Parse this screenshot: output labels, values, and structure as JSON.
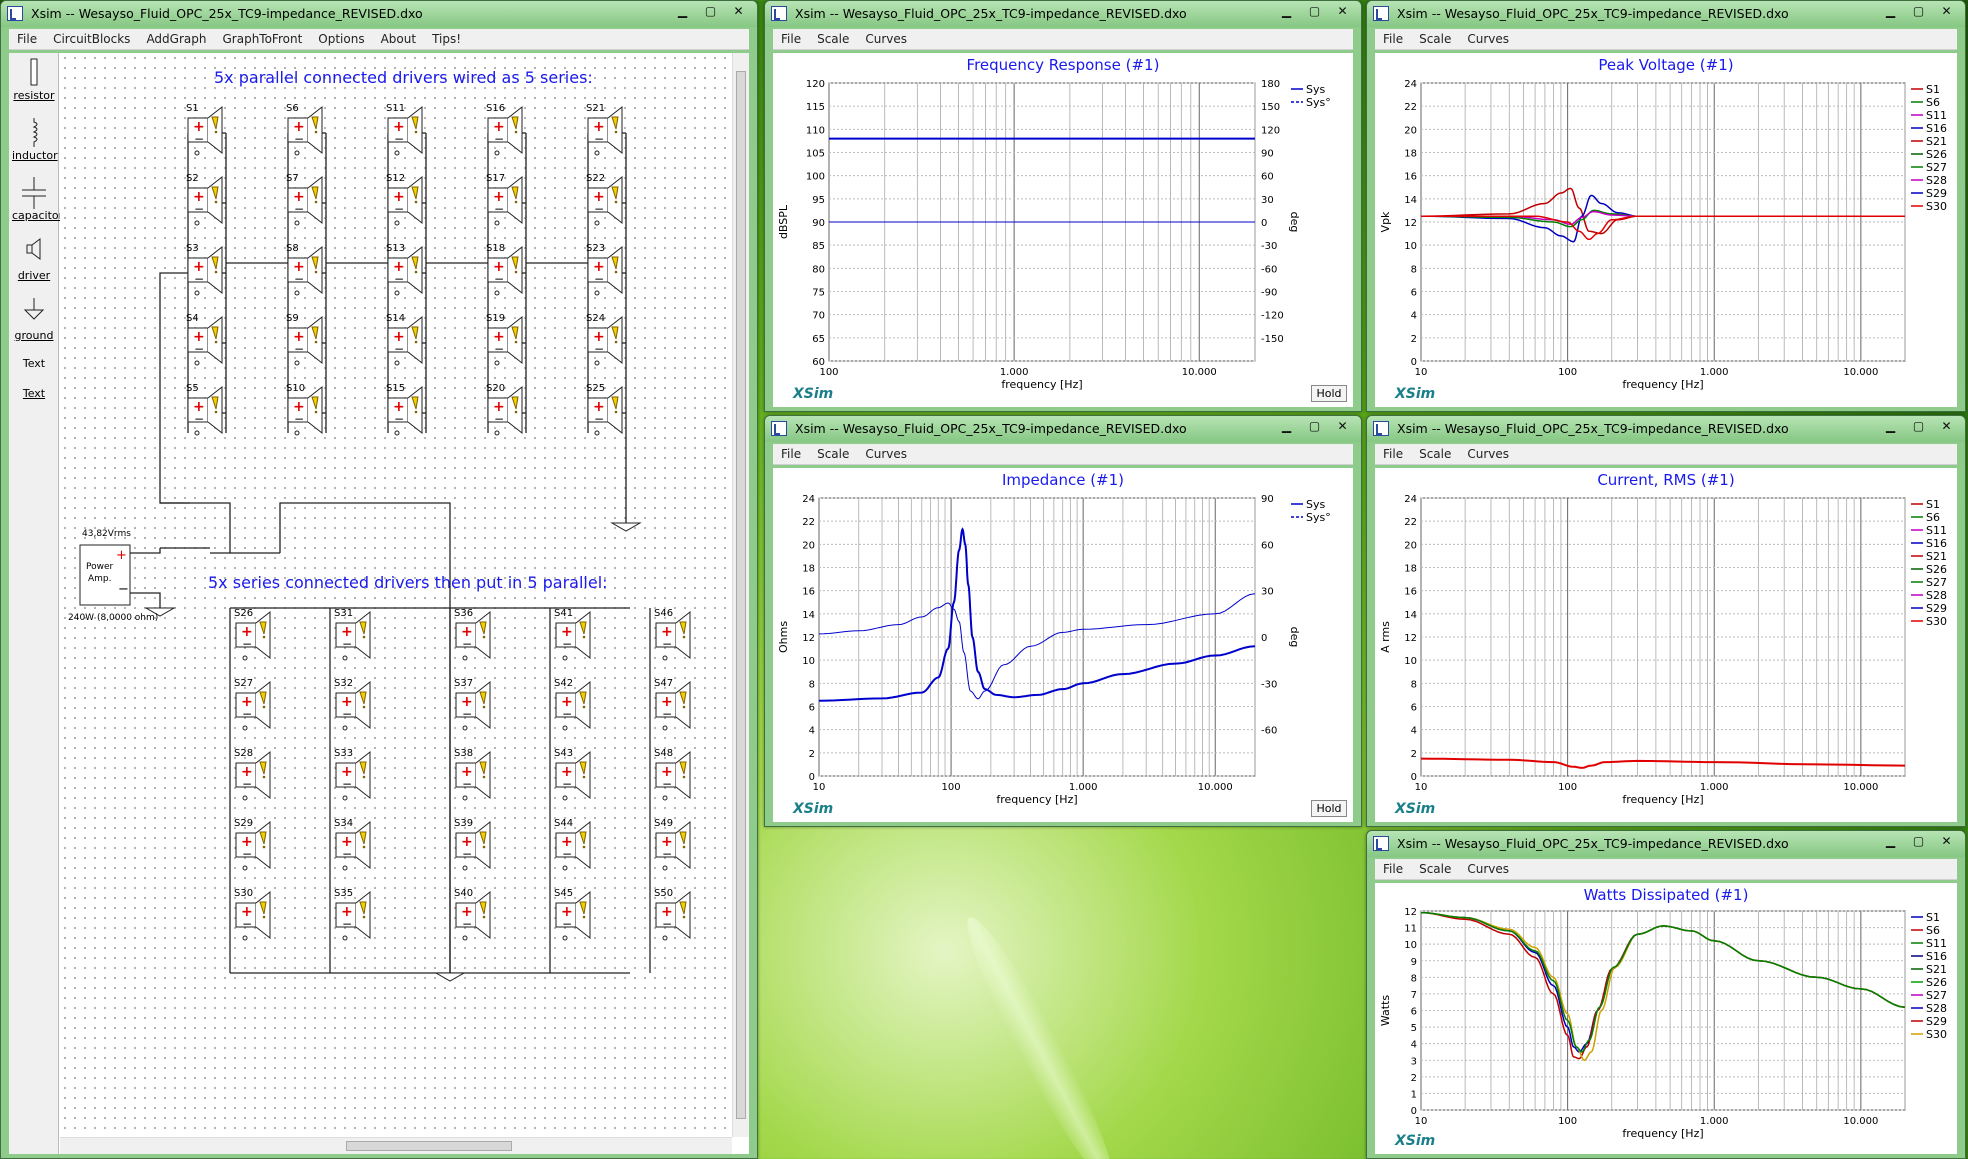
{
  "app": {
    "title": "Xsim -- Wesayso_Fluid_OPC_25x_TC9-impedance_REVISED.dxo",
    "chart_title": "Xsim -- Wesayso_Fluid_OPC_25x_TC9-impedance_REVISED.dxo",
    "brand": "XSim",
    "hold": "Hold"
  },
  "main_menu": [
    "File",
    "CircuitBlocks",
    "AddGraph",
    "GraphToFront",
    "Options",
    "About",
    "Tips!"
  ],
  "chart_menu": [
    "File",
    "Scale",
    "Curves"
  ],
  "palette": [
    {
      "label": "resistor",
      "icon": "resistor-icon"
    },
    {
      "label": "inductor",
      "icon": "inductor-icon"
    },
    {
      "label": "capacitor",
      "icon": "capacitor-icon"
    },
    {
      "label": "driver",
      "icon": "driver-icon"
    },
    {
      "label": "ground",
      "icon": "ground-icon"
    },
    {
      "label": "Text",
      "icon": "text-item"
    },
    {
      "label": "Text",
      "icon": "text-item"
    }
  ],
  "schematic": {
    "top_caption": "5x parallel connected drivers wired as 5 series:",
    "bottom_caption": "5x series connected drivers then put in 5 parallel:",
    "amp_voltage": "43,82Vrms",
    "amp_label_1": "Power",
    "amp_label_2": "Amp.",
    "amp_plus": "+",
    "amp_minus": "−",
    "amp_power": "240W (8,0000 ohm)",
    "top_drivers": [
      "S1",
      "S2",
      "S3",
      "S4",
      "S5",
      "S6",
      "S7",
      "S8",
      "S9",
      "S10",
      "S11",
      "S12",
      "S13",
      "S14",
      "S15",
      "S16",
      "S17",
      "S18",
      "S19",
      "S20",
      "S21",
      "S22",
      "S23",
      "S24",
      "S25"
    ],
    "bottom_drivers": [
      "S26",
      "S27",
      "S28",
      "S29",
      "S30",
      "S31",
      "S32",
      "S33",
      "S34",
      "S35",
      "S36",
      "S37",
      "S38",
      "S39",
      "S40",
      "S41",
      "S42",
      "S43",
      "S44",
      "S45",
      "S46",
      "S47",
      "S48",
      "S49",
      "S50"
    ]
  },
  "chart_data": [
    {
      "id": "freq",
      "type": "line",
      "title": "Frequency Response (#1)",
      "xlabel": "frequency [Hz]",
      "ylabel": "dBSPL",
      "ylabel2": "deg",
      "xscale": "log",
      "xlim": [
        100,
        20000
      ],
      "ylim": [
        60,
        120
      ],
      "y2lim": [
        -180,
        180
      ],
      "xticks": [
        {
          "v": 100,
          "l": "100"
        },
        {
          "v": 1000,
          "l": "1.000"
        },
        {
          "v": 10000,
          "l": "10.000"
        }
      ],
      "yticks": [
        60,
        65,
        70,
        75,
        80,
        85,
        90,
        95,
        100,
        105,
        110,
        115,
        120
      ],
      "y2ticks": [
        -150,
        -120,
        -90,
        -60,
        -30,
        0,
        30,
        60,
        90,
        120,
        150,
        180
      ],
      "legend": [
        {
          "name": "Sys",
          "color": "#0000cc"
        },
        {
          "name": "Sys°",
          "color": "#0000cc",
          "dashed": true
        }
      ],
      "series": [
        {
          "name": "Sys",
          "color": "#0000cc",
          "width": 2,
          "x": [
            100,
            20000
          ],
          "y": [
            108,
            108
          ]
        },
        {
          "name": "Sys°",
          "color": "#0000cc",
          "width": 1,
          "axis": 2,
          "x": [
            100,
            20000
          ],
          "y": [
            0,
            0
          ]
        }
      ]
    },
    {
      "id": "peak",
      "type": "line",
      "title": "Peak Voltage (#1)",
      "xlabel": "frequency [Hz]",
      "ylabel": "Vpk",
      "xscale": "log",
      "xlim": [
        10,
        20000
      ],
      "ylim": [
        0,
        24
      ],
      "xticks": [
        {
          "v": 10,
          "l": "10"
        },
        {
          "v": 100,
          "l": "100"
        },
        {
          "v": 1000,
          "l": "1.000"
        },
        {
          "v": 10000,
          "l": "10.000"
        }
      ],
      "yticks": [
        0,
        2,
        4,
        6,
        8,
        10,
        12,
        14,
        16,
        18,
        20,
        22,
        24
      ],
      "legend": [
        {
          "name": "S1",
          "color": "#c00000"
        },
        {
          "name": "S6",
          "color": "#008000"
        },
        {
          "name": "S11",
          "color": "#c000c0"
        },
        {
          "name": "S16",
          "color": "#0000c0"
        },
        {
          "name": "S21",
          "color": "#c00000"
        },
        {
          "name": "S26",
          "color": "#006000"
        },
        {
          "name": "S27",
          "color": "#008000"
        },
        {
          "name": "S28",
          "color": "#c000c0"
        },
        {
          "name": "S29",
          "color": "#0000c0"
        },
        {
          "name": "S30",
          "color": "#e00000"
        }
      ],
      "series": [
        {
          "name": "S1",
          "color": "#c00000",
          "width": 1.5,
          "x": [
            10,
            40,
            70,
            90,
            105,
            120,
            140,
            170,
            220,
            300,
            20000
          ],
          "y": [
            12.5,
            12.7,
            13.6,
            14.5,
            14.9,
            13.2,
            11.2,
            11.0,
            12.2,
            12.5,
            12.5
          ]
        },
        {
          "name": "S16",
          "color": "#0000c0",
          "width": 1.5,
          "x": [
            10,
            40,
            70,
            90,
            110,
            125,
            145,
            170,
            220,
            300,
            20000
          ],
          "y": [
            12.5,
            12.3,
            11.5,
            10.8,
            10.3,
            12.5,
            14.3,
            13.6,
            12.8,
            12.5,
            12.5
          ]
        },
        {
          "name": "S6",
          "color": "#008000",
          "width": 1.5,
          "x": [
            10,
            40,
            80,
            105,
            125,
            150,
            200,
            300,
            20000
          ],
          "y": [
            12.5,
            12.4,
            12.0,
            11.6,
            12.2,
            13.0,
            12.7,
            12.5,
            12.5
          ]
        },
        {
          "name": "S11",
          "color": "#c000c0",
          "width": 1.5,
          "x": [
            10,
            40,
            80,
            105,
            125,
            150,
            200,
            300,
            20000
          ],
          "y": [
            12.5,
            12.5,
            12.2,
            11.8,
            12.4,
            12.9,
            12.6,
            12.5,
            12.5
          ]
        },
        {
          "name": "S30",
          "color": "#e00000",
          "width": 1.5,
          "x": [
            10,
            60,
            100,
            120,
            140,
            160,
            200,
            300,
            20000
          ],
          "y": [
            12.5,
            12.5,
            12.0,
            11.2,
            10.5,
            11.0,
            12.2,
            12.5,
            12.5
          ]
        }
      ]
    },
    {
      "id": "imp",
      "type": "line",
      "title": "Impedance (#1)",
      "xlabel": "frequency [Hz]",
      "ylabel": "Ohms",
      "ylabel2": "deg",
      "xscale": "log",
      "xlim": [
        10,
        20000
      ],
      "ylim": [
        0,
        24
      ],
      "y2lim": [
        -90,
        90
      ],
      "xticks": [
        {
          "v": 10,
          "l": "10"
        },
        {
          "v": 100,
          "l": "100"
        },
        {
          "v": 1000,
          "l": "1.000"
        },
        {
          "v": 10000,
          "l": "10.000"
        }
      ],
      "yticks": [
        0,
        2,
        4,
        6,
        8,
        10,
        12,
        14,
        16,
        18,
        20,
        22,
        24
      ],
      "y2ticks": [
        -60,
        -30,
        0,
        30,
        60,
        90
      ],
      "legend": [
        {
          "name": "Sys",
          "color": "#0000cc"
        },
        {
          "name": "Sys°",
          "color": "#0000cc",
          "dashed": true
        }
      ],
      "series": [
        {
          "name": "Sys",
          "color": "#0000cc",
          "width": 2,
          "x": [
            10,
            30,
            60,
            80,
            95,
            105,
            115,
            122,
            128,
            135,
            145,
            160,
            180,
            220,
            300,
            450,
            700,
            1000,
            2000,
            5000,
            10000,
            20000
          ],
          "y": [
            6.5,
            6.7,
            7.2,
            8.5,
            11,
            15,
            19.5,
            21.3,
            20,
            16.5,
            12,
            9,
            7.5,
            7,
            6.8,
            7,
            7.5,
            8,
            8.8,
            9.7,
            10.4,
            11.2
          ]
        },
        {
          "name": "Sys°",
          "color": "#0000cc",
          "width": 1,
          "axis": 2,
          "x": [
            10,
            20,
            40,
            60,
            80,
            95,
            105,
            115,
            125,
            140,
            160,
            180,
            250,
            400,
            700,
            1000,
            3000,
            10000,
            20000
          ],
          "y": [
            2,
            4,
            8,
            13,
            19,
            22,
            18,
            10,
            -10,
            -35,
            -40,
            -35,
            -18,
            -6,
            3,
            5,
            8,
            15,
            28
          ]
        }
      ]
    },
    {
      "id": "cur",
      "type": "line",
      "title": "Current, RMS (#1)",
      "xlabel": "frequency [Hz]",
      "ylabel": "A rms",
      "xscale": "log",
      "xlim": [
        10,
        20000
      ],
      "ylim": [
        0,
        24
      ],
      "xticks": [
        {
          "v": 10,
          "l": "10"
        },
        {
          "v": 100,
          "l": "100"
        },
        {
          "v": 1000,
          "l": "1.000"
        },
        {
          "v": 10000,
          "l": "10.000"
        }
      ],
      "yticks": [
        0,
        2,
        4,
        6,
        8,
        10,
        12,
        14,
        16,
        18,
        20,
        22,
        24
      ],
      "legend": [
        {
          "name": "S1",
          "color": "#c00000"
        },
        {
          "name": "S6",
          "color": "#008000"
        },
        {
          "name": "S11",
          "color": "#c000c0"
        },
        {
          "name": "S16",
          "color": "#0000c0"
        },
        {
          "name": "S21",
          "color": "#c00000"
        },
        {
          "name": "S26",
          "color": "#006000"
        },
        {
          "name": "S27",
          "color": "#008000"
        },
        {
          "name": "S28",
          "color": "#c000c0"
        },
        {
          "name": "S29",
          "color": "#0000c0"
        },
        {
          "name": "S30",
          "color": "#e00000"
        }
      ],
      "series": [
        {
          "name": "S1",
          "color": "#e00000",
          "width": 2,
          "x": [
            10,
            40,
            80,
            110,
            125,
            145,
            180,
            300,
            1000,
            5000,
            20000
          ],
          "y": [
            1.5,
            1.4,
            1.2,
            0.8,
            0.7,
            0.9,
            1.2,
            1.3,
            1.2,
            1.0,
            0.9
          ]
        }
      ]
    },
    {
      "id": "watt",
      "type": "line",
      "title": "Watts Dissipated (#1)",
      "xlabel": "frequency [Hz]",
      "ylabel": "Watts",
      "xscale": "log",
      "xlim": [
        10,
        20000
      ],
      "ylim": [
        0,
        12
      ],
      "xticks": [
        {
          "v": 10,
          "l": "10"
        },
        {
          "v": 100,
          "l": "100"
        },
        {
          "v": 1000,
          "l": "1.000"
        },
        {
          "v": 10000,
          "l": "10.000"
        }
      ],
      "yticks": [
        0,
        1,
        2,
        3,
        4,
        5,
        6,
        7,
        8,
        9,
        10,
        11,
        12
      ],
      "legend": [
        {
          "name": "S1",
          "color": "#0000c0"
        },
        {
          "name": "S6",
          "color": "#c00000"
        },
        {
          "name": "S11",
          "color": "#008000"
        },
        {
          "name": "S16",
          "color": "#000080"
        },
        {
          "name": "S21",
          "color": "#006000"
        },
        {
          "name": "S26",
          "color": "#00a000"
        },
        {
          "name": "S27",
          "color": "#c000c0"
        },
        {
          "name": "S28",
          "color": "#0000c0"
        },
        {
          "name": "S29",
          "color": "#c00000"
        },
        {
          "name": "S30",
          "color": "#d0a000"
        }
      ],
      "series": [
        {
          "name": "S1",
          "color": "#0000c0",
          "width": 1.5,
          "x": [
            10,
            20,
            40,
            60,
            80,
            100,
            110,
            120,
            135,
            160,
            200,
            300,
            450,
            700,
            1000,
            2000,
            5000,
            10000,
            20000
          ],
          "y": [
            11.9,
            11.6,
            10.8,
            9.5,
            7.5,
            5,
            3.8,
            3.5,
            4,
            6,
            8.5,
            10.6,
            11.1,
            10.8,
            10.2,
            9,
            8,
            7.3,
            6.2
          ]
        },
        {
          "name": "S29",
          "color": "#c00000",
          "width": 1.5,
          "x": [
            10,
            20,
            40,
            60,
            80,
            100,
            110,
            120,
            135,
            160,
            200,
            300,
            450,
            700,
            1000,
            2000,
            5000,
            10000,
            20000
          ],
          "y": [
            11.9,
            11.5,
            10.6,
            9.2,
            7,
            4.5,
            3.2,
            3.1,
            3.8,
            6,
            8.5,
            10.6,
            11.1,
            10.8,
            10.2,
            9,
            8,
            7.3,
            6.2
          ]
        },
        {
          "name": "S30",
          "color": "#d0a000",
          "width": 1.5,
          "x": [
            10,
            20,
            40,
            60,
            80,
            100,
            115,
            130,
            145,
            170,
            210,
            300,
            450,
            700,
            1000,
            2000,
            5000,
            10000,
            20000
          ],
          "y": [
            11.9,
            11.6,
            10.9,
            9.8,
            8,
            5.8,
            3.8,
            3,
            3.5,
            6,
            8.6,
            10.6,
            11.1,
            10.8,
            10.2,
            9,
            8,
            7.3,
            6.2
          ]
        },
        {
          "name": "S11",
          "color": "#008000",
          "width": 1.5,
          "x": [
            10,
            20,
            40,
            60,
            80,
            100,
            115,
            125,
            140,
            165,
            205,
            300,
            450,
            700,
            1000,
            2000,
            5000,
            10000,
            20000
          ],
          "y": [
            11.9,
            11.6,
            10.8,
            9.6,
            7.8,
            5.4,
            3.8,
            3.5,
            4.2,
            6.2,
            8.6,
            10.6,
            11.1,
            10.8,
            10.2,
            9,
            8,
            7.3,
            6.2
          ]
        }
      ]
    }
  ]
}
